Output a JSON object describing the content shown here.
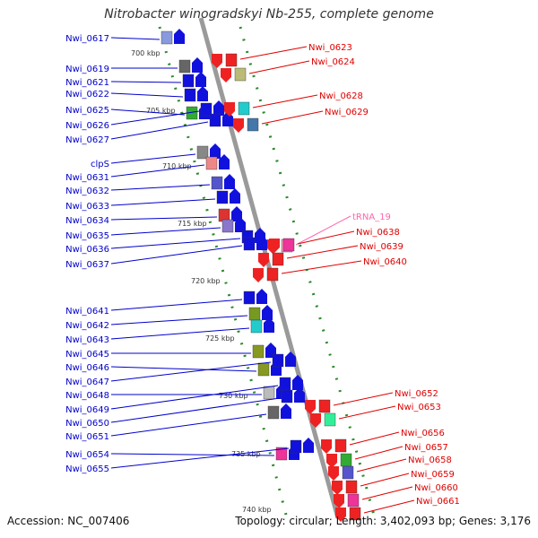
{
  "title": "Nitrobacter winogradskyi Nb-255, complete genome",
  "footer": {
    "accession": "Accession: NC_007406",
    "summary": "Topology: circular; Length: 3,402,093 bp; Genes: 3,176"
  },
  "colors": {
    "forward_label": "#0000cc",
    "reverse_label": "#e00000",
    "trna_label": "#ff66aa",
    "backbone": "#9a9a9a",
    "dots": "#2a8a2a"
  },
  "kbp_marks": [
    "700 kbp",
    "705 kbp",
    "710 kbp",
    "715 kbp",
    "720 kbp",
    "725 kbp",
    "730 kbp",
    "735 kbp",
    "740 kbp"
  ],
  "genes_forward": [
    {
      "name": "Nwi_0617",
      "color": "#8899dd"
    },
    {
      "name": "Nwi_0619",
      "color": "#666666"
    },
    {
      "name": "Nwi_0621",
      "color": "#1111dd"
    },
    {
      "name": "Nwi_0622",
      "color": "#1111dd"
    },
    {
      "name": "Nwi_0625",
      "color": "#33aa33"
    },
    {
      "name": "Nwi_0626",
      "color": "#1111dd"
    },
    {
      "name": "Nwi_0627",
      "color": "#1111dd"
    },
    {
      "name": "clpS",
      "color": "#888888"
    },
    {
      "name": "Nwi_0631",
      "color": "#ee8888"
    },
    {
      "name": "Nwi_0632",
      "color": "#5555cc"
    },
    {
      "name": "Nwi_0633",
      "color": "#1111dd"
    },
    {
      "name": "Nwi_0634",
      "color": "#dd3333"
    },
    {
      "name": "Nwi_0635",
      "color": "#8877cc"
    },
    {
      "name": "Nwi_0636",
      "color": "#1111dd"
    },
    {
      "name": "Nwi_0637",
      "color": "#1111dd"
    },
    {
      "name": "Nwi_0641",
      "color": "#1111dd"
    },
    {
      "name": "Nwi_0642",
      "color": "#779922"
    },
    {
      "name": "Nwi_0643",
      "color": "#22cccc"
    },
    {
      "name": "Nwi_0645",
      "color": "#889922"
    },
    {
      "name": "Nwi_0646",
      "color": "#889922"
    },
    {
      "name": "Nwi_0647",
      "color": "#1111dd"
    },
    {
      "name": "Nwi_0648",
      "color": "#bbbbbb"
    },
    {
      "name": "Nwi_0649",
      "color": "#1111dd"
    },
    {
      "name": "Nwi_0650",
      "color": "#1111dd"
    },
    {
      "name": "Nwi_0651",
      "color": "#666666"
    },
    {
      "name": "Nwi_0654",
      "color": "#ee3399"
    },
    {
      "name": "Nwi_0655",
      "color": "#1111dd"
    }
  ],
  "genes_reverse": [
    {
      "name": "Nwi_0623",
      "color": "#ee2222"
    },
    {
      "name": "Nwi_0624",
      "color": "#bbbb77"
    },
    {
      "name": "Nwi_0628",
      "color": "#22cccc"
    },
    {
      "name": "Nwi_0629",
      "color": "#4477aa"
    },
    {
      "name": "tRNA_19",
      "color": "#ff99bb"
    },
    {
      "name": "Nwi_0638",
      "color": "#ee3399"
    },
    {
      "name": "Nwi_0639",
      "color": "#ee2222"
    },
    {
      "name": "Nwi_0640",
      "color": "#ee2222"
    },
    {
      "name": "Nwi_0652",
      "color": "#ee2222"
    },
    {
      "name": "Nwi_0653",
      "color": "#33ee99"
    },
    {
      "name": "Nwi_0656",
      "color": "#ee2222"
    },
    {
      "name": "Nwi_0657",
      "color": "#33aa33"
    },
    {
      "name": "Nwi_0658",
      "color": "#5555cc"
    },
    {
      "name": "Nwi_0659",
      "color": "#ee2222"
    },
    {
      "name": "Nwi_0660",
      "color": "#ee3399"
    },
    {
      "name": "Nwi_0661",
      "color": "#ee2222"
    }
  ]
}
